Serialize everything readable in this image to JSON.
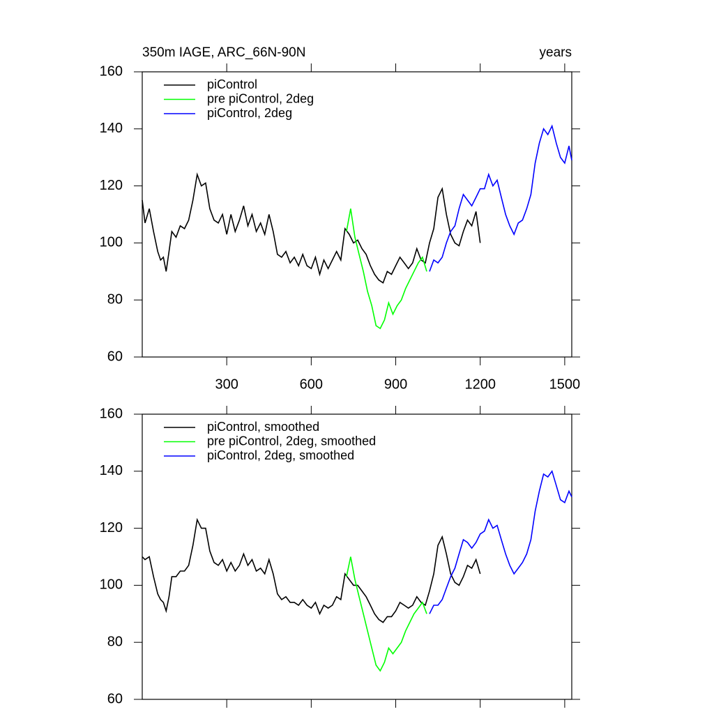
{
  "chart_data": [
    {
      "type": "line",
      "title": "350m IAGE, ARC_66N-90N",
      "right_title": "years",
      "xlim": [
        0,
        1525
      ],
      "xticks": [
        300,
        600,
        900,
        1200,
        1500
      ],
      "xtick_labels": true,
      "ylim": [
        60,
        160
      ],
      "yticks": [
        60,
        80,
        100,
        120,
        140,
        160
      ],
      "legend": "upper left",
      "series": [
        {
          "name": "piControl",
          "color": "#000000",
          "x": [
            0,
            10,
            25,
            40,
            55,
            65,
            75,
            85,
            95,
            105,
            120,
            135,
            150,
            165,
            180,
            195,
            210,
            225,
            240,
            255,
            270,
            285,
            300,
            315,
            330,
            345,
            360,
            375,
            390,
            405,
            420,
            435,
            450,
            465,
            480,
            495,
            510,
            525,
            540,
            555,
            570,
            585,
            600,
            615,
            630,
            645,
            660,
            675,
            690,
            705,
            720,
            735,
            750,
            765,
            780,
            795,
            810,
            825,
            840,
            855,
            870,
            885,
            900,
            915,
            930,
            945,
            960,
            975,
            990,
            1005,
            1020,
            1035,
            1050,
            1065,
            1080,
            1095,
            1110,
            1125,
            1140,
            1155,
            1170,
            1185,
            1200
          ],
          "values": [
            115,
            107,
            112,
            104,
            97,
            94,
            95,
            90,
            97,
            104,
            102,
            106,
            105,
            108,
            115,
            124,
            120,
            121,
            112,
            108,
            107,
            110,
            103,
            110,
            104,
            108,
            113,
            106,
            110,
            104,
            107,
            103,
            110,
            104,
            96,
            95,
            97,
            93,
            95,
            92,
            96,
            92,
            91,
            95,
            89,
            94,
            91,
            94,
            97,
            94,
            105,
            103,
            100,
            101,
            98,
            96,
            92,
            89,
            87,
            86,
            90,
            89,
            92,
            95,
            93,
            91,
            93,
            98,
            94,
            93,
            100,
            105,
            116,
            119,
            110,
            103,
            100,
            99,
            104,
            108,
            106,
            111,
            100
          ]
        },
        {
          "name": "pre piControl, 2deg",
          "color": "#00ff00",
          "x": [
            725,
            740,
            755,
            770,
            785,
            800,
            815,
            830,
            845,
            860,
            875,
            890,
            905,
            920,
            935,
            950,
            965,
            980,
            995,
            1010
          ],
          "values": [
            104,
            112,
            102,
            96,
            90,
            83,
            78,
            71,
            70,
            73,
            79,
            75,
            78,
            80,
            84,
            87,
            90,
            93,
            95,
            90
          ]
        },
        {
          "name": "piControl, 2deg",
          "color": "#0000ff",
          "x": [
            1020,
            1035,
            1050,
            1065,
            1080,
            1095,
            1110,
            1125,
            1140,
            1155,
            1170,
            1185,
            1200,
            1215,
            1230,
            1245,
            1260,
            1275,
            1290,
            1305,
            1320,
            1335,
            1350,
            1365,
            1380,
            1395,
            1410,
            1425,
            1440,
            1455,
            1470,
            1485,
            1500,
            1515,
            1525
          ],
          "values": [
            90,
            94,
            93,
            95,
            100,
            104,
            106,
            112,
            117,
            115,
            113,
            116,
            119,
            119,
            124,
            120,
            122,
            116,
            110,
            106,
            103,
            107,
            108,
            112,
            117,
            128,
            135,
            140,
            138,
            141,
            135,
            130,
            128,
            134,
            129
          ]
        }
      ]
    },
    {
      "type": "line",
      "xlim": [
        0,
        1525
      ],
      "xticks": [
        300,
        600,
        900,
        1200,
        1500
      ],
      "xtick_labels": false,
      "ylim": [
        60,
        160
      ],
      "yticks": [
        60,
        80,
        100,
        120,
        140,
        160
      ],
      "legend": "upper left",
      "series": [
        {
          "name": "piControl, smoothed",
          "color": "#000000",
          "x": [
            0,
            10,
            25,
            40,
            55,
            65,
            75,
            85,
            95,
            105,
            120,
            135,
            150,
            165,
            180,
            195,
            210,
            225,
            240,
            255,
            270,
            285,
            300,
            315,
            330,
            345,
            360,
            375,
            390,
            405,
            420,
            435,
            450,
            465,
            480,
            495,
            510,
            525,
            540,
            555,
            570,
            585,
            600,
            615,
            630,
            645,
            660,
            675,
            690,
            705,
            720,
            735,
            750,
            765,
            780,
            795,
            810,
            825,
            840,
            855,
            870,
            885,
            900,
            915,
            930,
            945,
            960,
            975,
            990,
            1005,
            1020,
            1035,
            1050,
            1065,
            1080,
            1095,
            1110,
            1125,
            1140,
            1155,
            1170,
            1185,
            1200
          ],
          "values": [
            110,
            109,
            110,
            103,
            97,
            95,
            94,
            91,
            96,
            103,
            103,
            105,
            105,
            107,
            114,
            123,
            120,
            120,
            112,
            108,
            107,
            109,
            105,
            108,
            105,
            107,
            111,
            107,
            109,
            105,
            106,
            104,
            109,
            104,
            97,
            95,
            96,
            94,
            94,
            93,
            95,
            93,
            92,
            94,
            90,
            93,
            92,
            93,
            96,
            95,
            104,
            102,
            100,
            100,
            98,
            96,
            93,
            90,
            88,
            87,
            89,
            89,
            91,
            94,
            93,
            92,
            93,
            96,
            94,
            93,
            98,
            104,
            114,
            117,
            111,
            104,
            101,
            100,
            103,
            107,
            106,
            109,
            104
          ]
        },
        {
          "name": "pre piControl, 2deg, smoothed",
          "color": "#00ff00",
          "x": [
            725,
            740,
            755,
            770,
            785,
            800,
            815,
            830,
            845,
            860,
            875,
            890,
            905,
            920,
            935,
            950,
            965,
            980,
            995,
            1010
          ],
          "values": [
            103,
            110,
            102,
            96,
            90,
            84,
            78,
            72,
            70,
            73,
            78,
            76,
            78,
            80,
            84,
            87,
            90,
            92,
            94,
            90
          ]
        },
        {
          "name": "piControl, 2deg, smoothed",
          "color": "#0000ff",
          "x": [
            1020,
            1035,
            1050,
            1065,
            1080,
            1095,
            1110,
            1125,
            1140,
            1155,
            1170,
            1185,
            1200,
            1215,
            1230,
            1245,
            1260,
            1275,
            1290,
            1305,
            1320,
            1335,
            1350,
            1365,
            1380,
            1395,
            1410,
            1425,
            1440,
            1455,
            1470,
            1485,
            1500,
            1515,
            1525
          ],
          "values": [
            90,
            93,
            93,
            95,
            99,
            103,
            106,
            111,
            116,
            115,
            113,
            115,
            118,
            119,
            123,
            120,
            121,
            116,
            111,
            107,
            104,
            106,
            108,
            111,
            116,
            126,
            133,
            139,
            138,
            140,
            135,
            130,
            129,
            133,
            131
          ]
        }
      ]
    }
  ]
}
